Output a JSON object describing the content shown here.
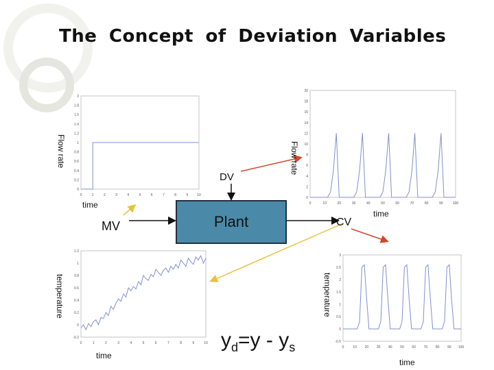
{
  "title": "The Concept of Deviation Variables",
  "block": {
    "plant_label": "Plant"
  },
  "labels": {
    "mv": "MV",
    "dv": "DV",
    "cv": "CV",
    "flow_rate_1": "Flow rate",
    "flow_rate_2": "Flow rate",
    "temperature_1": "temperature",
    "temperature_2": "temperature",
    "time_1": "time",
    "time_2": "time",
    "time_3": "time",
    "time_4": "time"
  },
  "equation": {
    "y_d": "y",
    "sub_d": "d",
    "mid": "=y - y",
    "sub_s": "s"
  },
  "colors": {
    "plot_line": "#7f8fd0",
    "arrow_black": "#111111",
    "arrow_red": "#d0472a",
    "arrow_yellow": "#e8c23a",
    "block_fill": "#4a8aa8"
  },
  "chart_data": [
    {
      "type": "line",
      "name": "mv_step",
      "x": [
        0,
        1,
        1,
        10
      ],
      "y": [
        0,
        0,
        1,
        1
      ],
      "xlim": [
        0,
        10
      ],
      "ylim": [
        0,
        2
      ],
      "xticks": [
        "0",
        "1",
        "2",
        "3",
        "4",
        "5",
        "6",
        "7",
        "8",
        "9",
        "10"
      ],
      "yticks": [
        "0",
        "0.2",
        "0.4",
        "0.6",
        "0.8",
        "1",
        "1.2",
        "1.4",
        "1.6",
        "1.8",
        "2"
      ]
    },
    {
      "type": "line",
      "name": "dv_pulses",
      "x": [
        0,
        12,
        14,
        16,
        18,
        20,
        30,
        32,
        34,
        36,
        38,
        48,
        50,
        52,
        54,
        56,
        66,
        68,
        70,
        72,
        74,
        84,
        86,
        88,
        90,
        92,
        100
      ],
      "y": [
        0,
        0,
        1,
        5,
        12,
        0,
        0,
        1,
        5,
        12,
        0,
        0,
        1,
        5,
        12,
        0,
        0,
        1,
        5,
        12,
        0,
        0,
        1,
        5,
        12,
        0,
        0
      ],
      "xlim": [
        0,
        100
      ],
      "ylim": [
        0,
        20
      ],
      "xticks": [
        "0",
        "10",
        "20",
        "30",
        "40",
        "50",
        "60",
        "70",
        "80",
        "90",
        "100"
      ],
      "yticks": [
        "0",
        "2",
        "4",
        "6",
        "8",
        "10",
        "12",
        "14",
        "16",
        "18",
        "20"
      ]
    },
    {
      "type": "line",
      "name": "cv_response_noisy",
      "x": [
        0,
        0.2,
        0.4,
        0.6,
        0.8,
        1.0,
        1.2,
        1.4,
        1.6,
        1.8,
        2.0,
        2.2,
        2.4,
        2.6,
        2.8,
        3.0,
        3.2,
        3.4,
        3.6,
        3.8,
        4.0,
        4.2,
        4.4,
        4.6,
        4.8,
        5.0,
        5.2,
        5.4,
        5.6,
        5.8,
        6.0,
        6.2,
        6.4,
        6.6,
        6.8,
        7.0,
        7.2,
        7.4,
        7.6,
        7.8,
        8.0,
        8.2,
        8.4,
        8.6,
        8.8,
        9.0,
        9.2,
        9.4,
        9.6,
        9.8,
        10
      ],
      "y": [
        -0.05,
        0.0,
        -0.08,
        0.02,
        -0.03,
        0.05,
        0.08,
        0.0,
        0.12,
        0.1,
        0.2,
        0.15,
        0.3,
        0.25,
        0.35,
        0.42,
        0.38,
        0.5,
        0.45,
        0.6,
        0.55,
        0.62,
        0.58,
        0.7,
        0.65,
        0.8,
        0.75,
        0.72,
        0.82,
        0.78,
        0.9,
        0.85,
        0.8,
        0.88,
        0.92,
        0.85,
        0.95,
        0.9,
        0.98,
        0.92,
        1.05,
        1.0,
        0.95,
        1.08,
        1.02,
        0.98,
        1.1,
        1.05,
        1.12,
        1.0,
        1.08
      ],
      "xlim": [
        0,
        10
      ],
      "ylim": [
        -0.2,
        1.2
      ],
      "xticks": [
        "0",
        "1",
        "2",
        "3",
        "4",
        "5",
        "6",
        "7",
        "8",
        "9",
        "10"
      ],
      "yticks": [
        "-0.2",
        "0",
        "0.2",
        "0.4",
        "0.6",
        "0.8",
        "1",
        "1.2"
      ]
    },
    {
      "type": "line",
      "name": "cv_deviation",
      "x": [
        0,
        12,
        14,
        16,
        18,
        20,
        22,
        30,
        32,
        34,
        36,
        38,
        40,
        48,
        50,
        52,
        54,
        56,
        58,
        66,
        68,
        70,
        72,
        74,
        76,
        84,
        86,
        88,
        90,
        92,
        94,
        100
      ],
      "y": [
        0,
        0,
        0.3,
        2.5,
        2.6,
        1.2,
        0,
        0,
        0.3,
        2.5,
        2.6,
        1.2,
        0,
        0,
        0.3,
        2.5,
        2.6,
        1.2,
        0,
        0,
        0.3,
        2.5,
        2.6,
        1.2,
        0,
        0,
        0.3,
        2.5,
        2.6,
        1.2,
        0,
        0
      ],
      "xlim": [
        0,
        100
      ],
      "ylim": [
        -0.5,
        3
      ],
      "xticks": [
        "0",
        "10",
        "20",
        "30",
        "40",
        "50",
        "60",
        "70",
        "80",
        "90",
        "100"
      ],
      "yticks": [
        "-0.5",
        "0",
        "0.5",
        "1",
        "1.5",
        "2",
        "2.5",
        "3"
      ]
    }
  ]
}
